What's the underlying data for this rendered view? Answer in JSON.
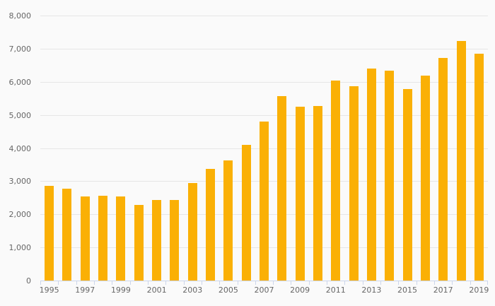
{
  "chart_data": {
    "type": "bar",
    "title": "",
    "xlabel": "",
    "ylabel": "",
    "categories": [
      "1995",
      "1996",
      "1997",
      "1998",
      "1999",
      "2000",
      "2001",
      "2002",
      "2003",
      "2004",
      "2005",
      "2006",
      "2007",
      "2008",
      "2009",
      "2010",
      "2011",
      "2012",
      "2013",
      "2014",
      "2015",
      "2016",
      "2017",
      "2018",
      "2019"
    ],
    "values": [
      2850,
      2770,
      2530,
      2570,
      2530,
      2290,
      2430,
      2430,
      2950,
      3380,
      3620,
      4100,
      4800,
      5570,
      5240,
      5270,
      6030,
      5860,
      6390,
      6330,
      5790,
      6190,
      6730,
      7240,
      6850
    ],
    "ylim": [
      0,
      8000
    ],
    "ytick_step": 1000,
    "ytick_labels": [
      "0",
      "1,000",
      "2,000",
      "3,000",
      "4,000",
      "5,000",
      "6,000",
      "7,000",
      "8,000"
    ],
    "xtick_label_step": 2,
    "x_labels_visible": [
      "1995",
      "1997",
      "1999",
      "2001",
      "2003",
      "2005",
      "2007",
      "2009",
      "2011",
      "2013",
      "2015",
      "2017",
      "2019"
    ],
    "grid": true,
    "legend": false,
    "colors": {
      "bar": "#FAB005",
      "background": "#FAFAFA",
      "gridline": "#E6E6E6",
      "axis_line": "#CCD6EB",
      "tick": "#CCD6EB",
      "label": "#666666"
    }
  }
}
